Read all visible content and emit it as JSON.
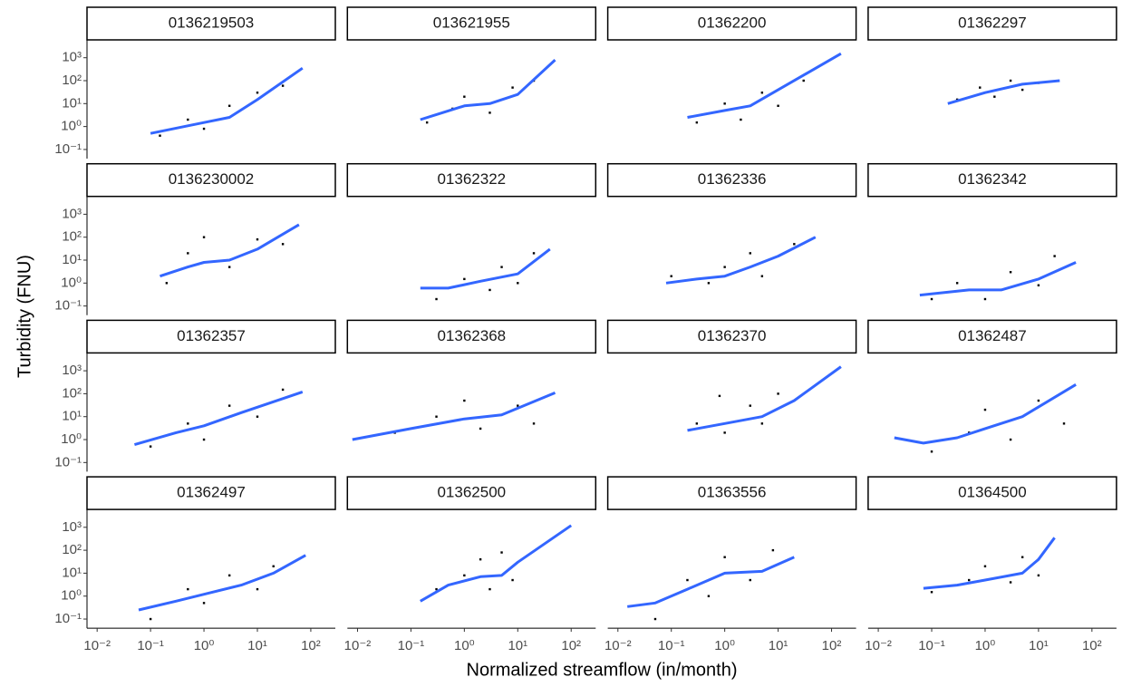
{
  "chart_data": {
    "type": "scatter",
    "xlabel": "Normalized streamflow (in/month)",
    "ylabel": "Turbidity (FNU)",
    "xscale": "log",
    "yscale": "log",
    "xlim": [
      0.00646,
      288
    ],
    "ylim": [
      0.04,
      6000
    ],
    "xticks": [
      {
        "value": 0.01,
        "label": "10⁻²"
      },
      {
        "value": 0.1,
        "label": "10⁻¹"
      },
      {
        "value": 1,
        "label": "10⁰"
      },
      {
        "value": 10,
        "label": "10¹"
      },
      {
        "value": 100,
        "label": "10²"
      }
    ],
    "yticks": [
      {
        "value": 0.1,
        "label": "10⁻¹"
      },
      {
        "value": 1,
        "label": "10⁰"
      },
      {
        "value": 10,
        "label": "10¹"
      },
      {
        "value": 100,
        "label": "10²"
      },
      {
        "value": 1000,
        "label": "10³"
      }
    ],
    "point_color": "#000000",
    "smooth_color": "#3366ff",
    "panels": [
      {
        "title": "0136219503",
        "points": {
          "x": [
            0.15,
            0.5,
            1,
            3,
            10,
            30
          ],
          "y": [
            0.4,
            2,
            0.8,
            8,
            30,
            60
          ]
        },
        "smooth": {
          "x": [
            0.1,
            1,
            3,
            10,
            70
          ],
          "y": [
            0.5,
            1.5,
            2.5,
            15,
            350
          ]
        }
      },
      {
        "title": "013621955",
        "points": {
          "x": [
            0.2,
            0.6,
            1,
            3,
            8,
            20
          ],
          "y": [
            1.5,
            6,
            20,
            4,
            50,
            100
          ]
        },
        "smooth": {
          "x": [
            0.15,
            1,
            3,
            10,
            50
          ],
          "y": [
            2,
            8,
            10,
            25,
            800
          ]
        }
      },
      {
        "title": "01362200",
        "points": {
          "x": [
            0.3,
            1,
            2,
            5,
            10,
            30
          ],
          "y": [
            1.5,
            10,
            2,
            30,
            8,
            100
          ]
        },
        "smooth": {
          "x": [
            0.2,
            1,
            3,
            10,
            150
          ],
          "y": [
            2.5,
            5,
            8,
            40,
            1500
          ]
        }
      },
      {
        "title": "01362297",
        "points": {
          "x": [
            0.3,
            0.8,
            1.5,
            3,
            5,
            10
          ],
          "y": [
            15,
            50,
            20,
            100,
            40,
            80
          ]
        },
        "smooth": {
          "x": [
            0.2,
            1,
            5,
            25
          ],
          "y": [
            10,
            30,
            70,
            100
          ]
        }
      },
      {
        "title": "0136230002",
        "points": {
          "x": [
            0.2,
            0.5,
            1,
            3,
            10,
            30
          ],
          "y": [
            1,
            20,
            100,
            5,
            80,
            50
          ]
        },
        "smooth": {
          "x": [
            0.15,
            0.5,
            1,
            3,
            10,
            60
          ],
          "y": [
            2,
            5,
            8,
            10,
            30,
            350
          ]
        }
      },
      {
        "title": "01362322",
        "points": {
          "x": [
            0.3,
            1,
            3,
            5,
            10,
            20
          ],
          "y": [
            0.2,
            1.5,
            0.5,
            5,
            1,
            20
          ]
        },
        "smooth": {
          "x": [
            0.15,
            0.5,
            2,
            10,
            40
          ],
          "y": [
            0.6,
            0.6,
            1.2,
            2.5,
            30
          ]
        }
      },
      {
        "title": "01362336",
        "points": {
          "x": [
            0.1,
            0.5,
            1,
            3,
            5,
            20
          ],
          "y": [
            2,
            1,
            5,
            20,
            2,
            50
          ]
        },
        "smooth": {
          "x": [
            0.08,
            0.3,
            1,
            3,
            10,
            50
          ],
          "y": [
            1,
            1.5,
            2,
            5,
            15,
            100
          ]
        }
      },
      {
        "title": "01362342",
        "points": {
          "x": [
            0.1,
            0.3,
            1,
            3,
            10,
            20
          ],
          "y": [
            0.2,
            1,
            0.2,
            3,
            0.8,
            15
          ]
        },
        "smooth": {
          "x": [
            0.06,
            0.5,
            2,
            10,
            50
          ],
          "y": [
            0.3,
            0.5,
            0.5,
            1.5,
            8
          ]
        }
      },
      {
        "title": "01362357",
        "points": {
          "x": [
            0.1,
            0.5,
            1,
            3,
            10,
            30
          ],
          "y": [
            0.5,
            5,
            1,
            30,
            10,
            150
          ]
        },
        "smooth": {
          "x": [
            0.05,
            0.3,
            1,
            5,
            70
          ],
          "y": [
            0.6,
            2,
            4,
            15,
            120
          ]
        }
      },
      {
        "title": "01362368",
        "points": {
          "x": [
            0.05,
            0.3,
            1,
            2,
            10,
            20
          ],
          "y": [
            2,
            10,
            50,
            3,
            30,
            5
          ]
        },
        "smooth": {
          "x": [
            0.008,
            0.1,
            1,
            5,
            50
          ],
          "y": [
            1,
            3,
            8,
            12,
            110
          ]
        }
      },
      {
        "title": "01362370",
        "points": {
          "x": [
            0.3,
            0.8,
            1,
            3,
            5,
            10
          ],
          "y": [
            5,
            80,
            2,
            30,
            5,
            100
          ]
        },
        "smooth": {
          "x": [
            0.2,
            1,
            5,
            20,
            150
          ],
          "y": [
            2.5,
            5,
            10,
            50,
            1500
          ]
        }
      },
      {
        "title": "01362487",
        "points": {
          "x": [
            0.1,
            0.5,
            1,
            3,
            10,
            30
          ],
          "y": [
            0.3,
            2,
            20,
            1,
            50,
            5
          ]
        },
        "smooth": {
          "x": [
            0.02,
            0.07,
            0.3,
            1,
            5,
            50
          ],
          "y": [
            1.2,
            0.7,
            1.2,
            3,
            10,
            250
          ]
        }
      },
      {
        "title": "01362497",
        "points": {
          "x": [
            0.1,
            0.5,
            1,
            3,
            10,
            20
          ],
          "y": [
            0.1,
            2,
            0.5,
            8,
            2,
            20
          ]
        },
        "smooth": {
          "x": [
            0.06,
            0.3,
            1,
            5,
            20,
            80
          ],
          "y": [
            0.25,
            0.6,
            1.2,
            3,
            10,
            60
          ]
        }
      },
      {
        "title": "01362500",
        "points": {
          "x": [
            0.3,
            1,
            2,
            3,
            5,
            8
          ],
          "y": [
            2,
            8,
            40,
            2,
            80,
            5
          ]
        },
        "smooth": {
          "x": [
            0.15,
            0.5,
            2,
            5,
            10,
            100
          ],
          "y": [
            0.6,
            3,
            7,
            8,
            30,
            1200
          ]
        }
      },
      {
        "title": "01363556",
        "points": {
          "x": [
            0.05,
            0.2,
            0.5,
            1,
            3,
            8
          ],
          "y": [
            0.1,
            5,
            1,
            50,
            5,
            100
          ]
        },
        "smooth": {
          "x": [
            0.015,
            0.05,
            0.2,
            1,
            5,
            20
          ],
          "y": [
            0.35,
            0.5,
            2,
            10,
            12,
            50
          ]
        }
      },
      {
        "title": "01364500",
        "points": {
          "x": [
            0.1,
            0.5,
            1,
            3,
            5,
            10
          ],
          "y": [
            1.5,
            5,
            20,
            4,
            50,
            8
          ]
        },
        "smooth": {
          "x": [
            0.07,
            0.3,
            1,
            5,
            10,
            20
          ],
          "y": [
            2.2,
            3,
            5,
            10,
            40,
            350
          ]
        }
      }
    ]
  }
}
